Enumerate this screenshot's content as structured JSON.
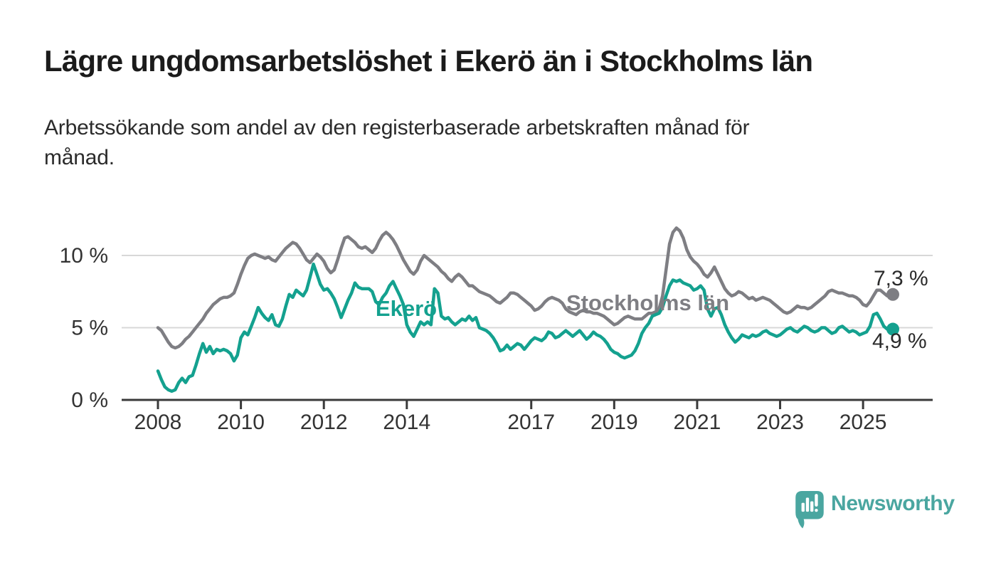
{
  "header": {
    "title": "Lägre ungdomsarbetslöshet i Ekerö än i Stockholms län",
    "subtitle": "Arbetssökande som andel av den registerbaserade arbetskraften månad för månad.",
    "subtitle_line1": "Arbetssökande som andel av den registerbaserade arbetskraften månad för",
    "subtitle_line2": "månad."
  },
  "branding": {
    "name": "Newsworthy",
    "icon": "speech-bubble-bar-chart-icon",
    "color": "#4AA6A0"
  },
  "colors": {
    "ekero_line": "#14A18F",
    "stockholm_line": "#7E7E83",
    "axis": "#3A3A3A",
    "grid": "#D8D8D8",
    "tick_text": "#333333",
    "annotation_text": "#2B2B2B",
    "background": "#FFFFFF"
  },
  "chart_data": {
    "type": "line",
    "title": "Lägre ungdomsarbetslöshet i Ekerö än i Stockholms län",
    "unit": "%",
    "frequency": "monthly",
    "start": "2008-01",
    "end": "2025-09",
    "grid": "horizontal",
    "legend": "inline-labels",
    "ylim": [
      0,
      12.5
    ],
    "y_ticks": [
      {
        "label": "0 %",
        "value": 0
      },
      {
        "label": "5 %",
        "value": 5
      },
      {
        "label": "10 %",
        "value": 10
      }
    ],
    "x_ticks": [
      {
        "label": "2008",
        "year": 2008
      },
      {
        "label": "2010",
        "year": 2010
      },
      {
        "label": "2012",
        "year": 2012
      },
      {
        "label": "2014",
        "year": 2014
      },
      {
        "label": "2017",
        "year": 2017
      },
      {
        "label": "2019",
        "year": 2019
      },
      {
        "label": "2021",
        "year": 2021
      },
      {
        "label": "2023",
        "year": 2023
      },
      {
        "label": "2025",
        "year": 2025
      }
    ],
    "series": [
      {
        "name": "Stockholms län",
        "color": "#7E7E83",
        "end_label": "7,3 %",
        "last_value": 7.3,
        "values": [
          5.0,
          4.8,
          4.4,
          4.0,
          3.7,
          3.6,
          3.7,
          3.9,
          4.2,
          4.4,
          4.7,
          5.0,
          5.3,
          5.6,
          6.0,
          6.3,
          6.6,
          6.8,
          7.0,
          7.1,
          7.1,
          7.2,
          7.4,
          8.0,
          8.7,
          9.3,
          9.8,
          10.0,
          10.1,
          10.0,
          9.9,
          9.8,
          9.9,
          9.7,
          9.6,
          9.9,
          10.2,
          10.5,
          10.7,
          10.9,
          10.8,
          10.5,
          10.1,
          9.7,
          9.5,
          9.8,
          10.1,
          9.9,
          9.6,
          9.1,
          8.8,
          9.0,
          9.7,
          10.5,
          11.2,
          11.3,
          11.1,
          10.9,
          10.6,
          10.5,
          10.6,
          10.4,
          10.2,
          10.5,
          11.0,
          11.4,
          11.6,
          11.4,
          11.1,
          10.7,
          10.2,
          9.7,
          9.3,
          8.9,
          8.7,
          9.0,
          9.6,
          10.0,
          9.8,
          9.6,
          9.4,
          9.2,
          8.9,
          8.7,
          8.4,
          8.2,
          8.5,
          8.7,
          8.5,
          8.2,
          7.9,
          7.9,
          7.7,
          7.5,
          7.4,
          7.3,
          7.2,
          7.0,
          6.8,
          6.7,
          6.9,
          7.1,
          7.4,
          7.4,
          7.3,
          7.1,
          6.9,
          6.7,
          6.5,
          6.2,
          6.3,
          6.5,
          6.8,
          7.0,
          7.1,
          7.0,
          6.9,
          6.7,
          6.3,
          6.1,
          6.0,
          5.9,
          6.1,
          6.2,
          6.1,
          6.1,
          6.0,
          6.0,
          5.9,
          5.8,
          5.6,
          5.4,
          5.2,
          5.3,
          5.5,
          5.7,
          5.8,
          5.7,
          5.6,
          5.6,
          5.6,
          5.8,
          6.0,
          6.0,
          6.1,
          6.3,
          7.2,
          9.0,
          10.8,
          11.6,
          11.9,
          11.7,
          11.2,
          10.4,
          9.9,
          9.6,
          9.4,
          9.1,
          8.7,
          8.5,
          8.8,
          9.2,
          8.7,
          8.2,
          7.7,
          7.4,
          7.2,
          7.3,
          7.5,
          7.4,
          7.2,
          7.0,
          7.1,
          6.9,
          7.0,
          7.1,
          7.0,
          6.9,
          6.7,
          6.5,
          6.3,
          6.1,
          6.0,
          6.1,
          6.3,
          6.5,
          6.4,
          6.4,
          6.3,
          6.4,
          6.6,
          6.8,
          7.0,
          7.2,
          7.5,
          7.6,
          7.5,
          7.4,
          7.4,
          7.3,
          7.2,
          7.2,
          7.1,
          6.9,
          6.6,
          6.5,
          6.8,
          7.2,
          7.6,
          7.6,
          7.4,
          7.2,
          7.3
        ]
      },
      {
        "name": "Ekerö",
        "color": "#14A18F",
        "end_label": "4,9 %",
        "last_value": 4.9,
        "values": [
          2.0,
          1.4,
          0.9,
          0.7,
          0.6,
          0.7,
          1.2,
          1.5,
          1.2,
          1.6,
          1.7,
          2.4,
          3.2,
          3.9,
          3.3,
          3.7,
          3.2,
          3.5,
          3.4,
          3.5,
          3.4,
          3.2,
          2.7,
          3.1,
          4.3,
          4.7,
          4.5,
          5.1,
          5.7,
          6.4,
          6.0,
          5.7,
          5.5,
          5.9,
          5.2,
          5.1,
          5.6,
          6.5,
          7.3,
          7.1,
          7.6,
          7.4,
          7.2,
          7.6,
          8.5,
          9.4,
          8.7,
          8.0,
          7.6,
          7.7,
          7.4,
          7.0,
          6.4,
          5.7,
          6.3,
          6.9,
          7.4,
          8.1,
          7.8,
          7.7,
          7.7,
          7.7,
          7.5,
          6.8,
          6.6,
          7.1,
          7.4,
          7.9,
          8.2,
          7.7,
          7.2,
          6.6,
          5.2,
          4.7,
          4.4,
          4.9,
          5.4,
          5.2,
          5.4,
          5.2,
          7.7,
          7.4,
          5.8,
          5.6,
          5.7,
          5.4,
          5.2,
          5.4,
          5.6,
          5.5,
          5.8,
          5.5,
          5.7,
          5.0,
          4.9,
          4.8,
          4.6,
          4.3,
          3.9,
          3.4,
          3.5,
          3.8,
          3.5,
          3.7,
          3.9,
          3.8,
          3.5,
          3.8,
          4.1,
          4.3,
          4.2,
          4.1,
          4.3,
          4.7,
          4.6,
          4.3,
          4.4,
          4.6,
          4.8,
          4.6,
          4.4,
          4.6,
          4.8,
          4.5,
          4.2,
          4.4,
          4.7,
          4.5,
          4.4,
          4.2,
          3.9,
          3.5,
          3.3,
          3.2,
          3.0,
          2.9,
          3.0,
          3.1,
          3.4,
          3.9,
          4.6,
          5.0,
          5.3,
          5.8,
          5.9,
          6.0,
          6.4,
          7.2,
          7.9,
          8.3,
          8.2,
          8.3,
          8.1,
          8.0,
          7.9,
          7.6,
          7.7,
          7.9,
          7.6,
          6.3,
          5.8,
          6.3,
          6.4,
          5.9,
          5.2,
          4.7,
          4.3,
          4.0,
          4.2,
          4.5,
          4.4,
          4.3,
          4.5,
          4.4,
          4.5,
          4.7,
          4.8,
          4.6,
          4.5,
          4.4,
          4.5,
          4.7,
          4.9,
          5.0,
          4.8,
          4.7,
          4.9,
          5.1,
          5.0,
          4.8,
          4.7,
          4.8,
          5.0,
          5.0,
          4.8,
          4.6,
          4.7,
          5.0,
          5.1,
          4.9,
          4.7,
          4.8,
          4.7,
          4.5,
          4.6,
          4.7,
          5.1,
          5.9,
          6.0,
          5.6,
          5.1,
          4.9,
          4.9
        ]
      }
    ]
  }
}
